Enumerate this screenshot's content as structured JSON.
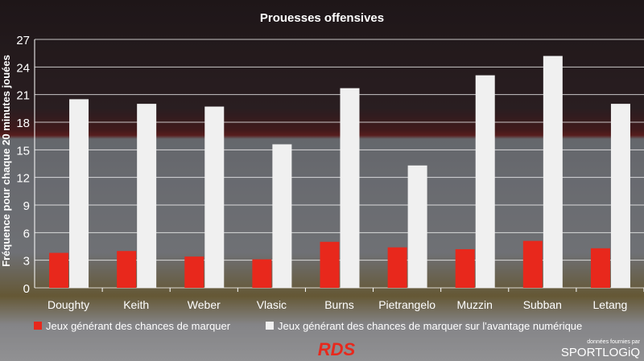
{
  "chart_data": {
    "type": "bar",
    "title": "Prouesses offensives",
    "ylabel": "Fréquence pour chaque 20 minutes jouées",
    "xlabel": "",
    "ylim": [
      0,
      27
    ],
    "yticks": [
      0,
      3,
      6,
      9,
      12,
      15,
      18,
      21,
      24,
      27
    ],
    "grid": true,
    "legend": "bottom",
    "categories": [
      "Doughty",
      "Keith",
      "Weber",
      "Vlasic",
      "Burns",
      "Pietrangelo",
      "Muzzin",
      "Subban",
      "Letang"
    ],
    "series": [
      {
        "name": "Jeux générant des chances de marquer",
        "color": "#e8281c",
        "values": [
          3.8,
          4.0,
          3.4,
          3.1,
          5.0,
          4.4,
          4.2,
          5.1,
          4.3
        ]
      },
      {
        "name": "Jeux générant des chances de marquer sur l'avantage numérique",
        "color": "#f0f0f0",
        "values": [
          20.5,
          20.0,
          19.7,
          15.6,
          21.7,
          13.3,
          23.1,
          25.2,
          20.0
        ]
      }
    ]
  },
  "footer": {
    "source_label": "données fournies par",
    "brand": "SPORTLOGiQ",
    "network": "RDS"
  }
}
